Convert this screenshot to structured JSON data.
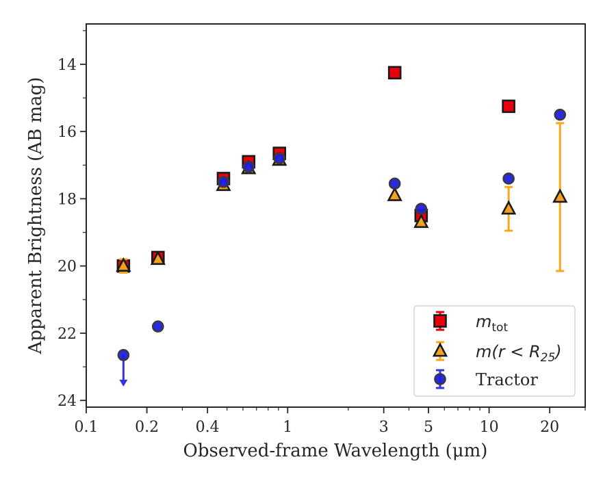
{
  "chart_data": {
    "type": "scatter",
    "xlabel": "Observed-frame Wavelength (μm)",
    "ylabel": "Apparent Brightness (AB mag)",
    "xscale": "log",
    "xlim": [
      0.1,
      30
    ],
    "ylim": [
      24.2,
      12.8
    ],
    "y_inverted": true,
    "grid": false,
    "legend_position": "lower-right",
    "x_tick_labels": [
      "0.1",
      "0.2",
      "0.4",
      "1",
      "3",
      "5",
      "10",
      "20"
    ],
    "x_tick_values": [
      0.1,
      0.2,
      0.4,
      1,
      3,
      5,
      10,
      20
    ],
    "y_tick_labels": [
      "14",
      "16",
      "18",
      "20",
      "22",
      "24"
    ],
    "y_tick_values": [
      14,
      16,
      18,
      20,
      22,
      24
    ],
    "series": [
      {
        "name": "m_tot",
        "legend_text": {
          "base": "m",
          "sub": "tot"
        },
        "marker": "square",
        "color": "#e8000b",
        "errorbar_color": "#e8000b",
        "edge_color": "#1a1a1a",
        "points": [
          {
            "x": 0.153,
            "y": 20.0
          },
          {
            "x": 0.227,
            "y": 19.75
          },
          {
            "x": 0.48,
            "y": 17.4
          },
          {
            "x": 0.64,
            "y": 16.9
          },
          {
            "x": 0.91,
            "y": 16.65
          },
          {
            "x": 3.4,
            "y": 14.25
          },
          {
            "x": 4.6,
            "y": 18.5
          },
          {
            "x": 12.5,
            "y": 15.25
          }
        ]
      },
      {
        "name": "m(r < R25)",
        "legend_text": {
          "base": "m(r < R",
          "sub": "25",
          "close": ")"
        },
        "marker": "triangle",
        "color": "#f4a021",
        "errorbar_color": "#f7a91b",
        "edge_color": "#1a1a1a",
        "points": [
          {
            "x": 0.153,
            "y": 20.0,
            "yerr": 0.2
          },
          {
            "x": 0.227,
            "y": 19.8
          },
          {
            "x": 0.48,
            "y": 17.6
          },
          {
            "x": 0.64,
            "y": 17.1
          },
          {
            "x": 0.91,
            "y": 16.85
          },
          {
            "x": 3.4,
            "y": 17.9
          },
          {
            "x": 4.6,
            "y": 18.7
          },
          {
            "x": 12.5,
            "y": 18.3,
            "yerr": 0.65
          },
          {
            "x": 22.5,
            "y": 17.95,
            "yerr_up": 2.2,
            "yerr_low": 2.2
          }
        ]
      },
      {
        "name": "Tractor",
        "marker": "circle",
        "color": "#1f1fe0",
        "errorbar_color": "#3333ee",
        "edge_color": "#3a3a3a",
        "points": [
          {
            "x": 0.153,
            "y": 22.65,
            "upper_limit": true
          },
          {
            "x": 0.227,
            "y": 21.8
          },
          {
            "x": 0.48,
            "y": 17.5
          },
          {
            "x": 0.64,
            "y": 17.05
          },
          {
            "x": 0.91,
            "y": 16.8
          },
          {
            "x": 3.4,
            "y": 17.55
          },
          {
            "x": 4.6,
            "y": 18.3
          },
          {
            "x": 12.5,
            "y": 17.4
          },
          {
            "x": 22.5,
            "y": 15.5
          }
        ]
      }
    ]
  },
  "legend": {
    "tractor_label": "Tractor"
  }
}
